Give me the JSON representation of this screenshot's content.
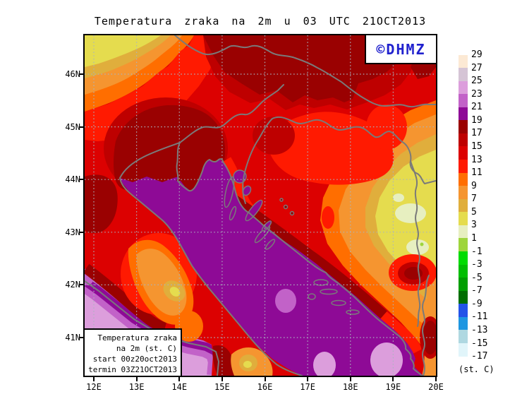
{
  "title": "Temperatura zraka na 2m u 03 UTC 21OCT2013",
  "watermark": {
    "label": "©DHMZ",
    "color": "#2021CE"
  },
  "info_box": {
    "lines": [
      "Temperatura zraka",
      "na 2m (st. C)",
      "start 00z20oct2013",
      "termin 03Z21OCT2013"
    ]
  },
  "axes": {
    "lat_labels": [
      "46N",
      "45N",
      "44N",
      "43N",
      "42N",
      "41N"
    ],
    "lon_labels": [
      "12E",
      "13E",
      "14E",
      "15E",
      "16E",
      "17E",
      "18E",
      "19E",
      "20E"
    ]
  },
  "legend": {
    "values": [
      "29",
      "27",
      "25",
      "23",
      "21",
      "19",
      "17",
      "15",
      "13",
      "11",
      "9",
      "7",
      "5",
      "3",
      "1",
      "-1",
      "-3",
      "-5",
      "-7",
      "-9",
      "-11",
      "-13",
      "-15",
      "-17"
    ],
    "box_colors": [
      "#FCE9D4",
      "#D5C4D5",
      "#DC9EDC",
      "#C262C8",
      "#8E0A96",
      "#9A0101",
      "#BE0000",
      "#DC0101",
      "#FF1A01",
      "#FF6E00",
      "#F59530",
      "#E0AE3C",
      "#E5DC4E",
      "#E7EFC0",
      "#9ED53C",
      "#01DC01",
      "#01BE01",
      "#019E01",
      "#016E01",
      "#2353E8",
      "#1E96E1",
      "#AFD8E1",
      "#E1F5FA"
    ],
    "unit_label": "(st. C)"
  },
  "palette": {
    "p29": "#FCE9D4",
    "p27": "#D5C4D5",
    "p25": "#DC9EDC",
    "p23": "#C262C8",
    "p21": "#8E0A96",
    "p19": "#9A0101",
    "p17": "#BE0000",
    "p15": "#DC0101",
    "p13": "#FF1A01",
    "p11": "#FF6E00",
    "p9": "#F59530",
    "p7": "#E0AE3C",
    "p5": "#E5DC4E",
    "p3": "#E7EFC0",
    "p1": "#9ED53C",
    "grid": "#A9B4BF",
    "line": "#7A7A7A",
    "frame": "#000000"
  }
}
